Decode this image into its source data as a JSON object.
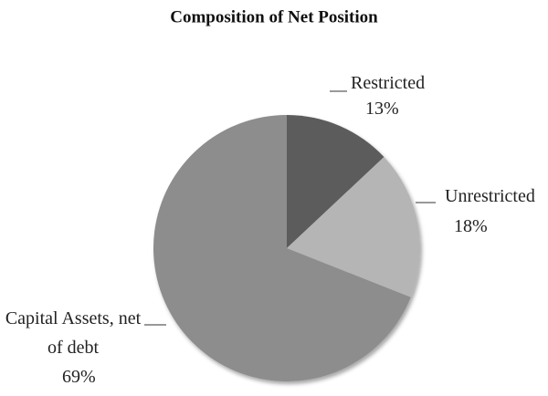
{
  "chart_data": {
    "type": "pie",
    "title": "Composition of Net Position",
    "categories": [
      "Restricted",
      "Unrestricted",
      "Capital Assets, net of debt"
    ],
    "values": [
      13,
      18,
      69
    ],
    "value_labels": [
      "13%",
      "18%",
      "69%"
    ],
    "colors": [
      "#5b5b5b",
      "#b5b5b5",
      "#8d8d8d"
    ]
  }
}
